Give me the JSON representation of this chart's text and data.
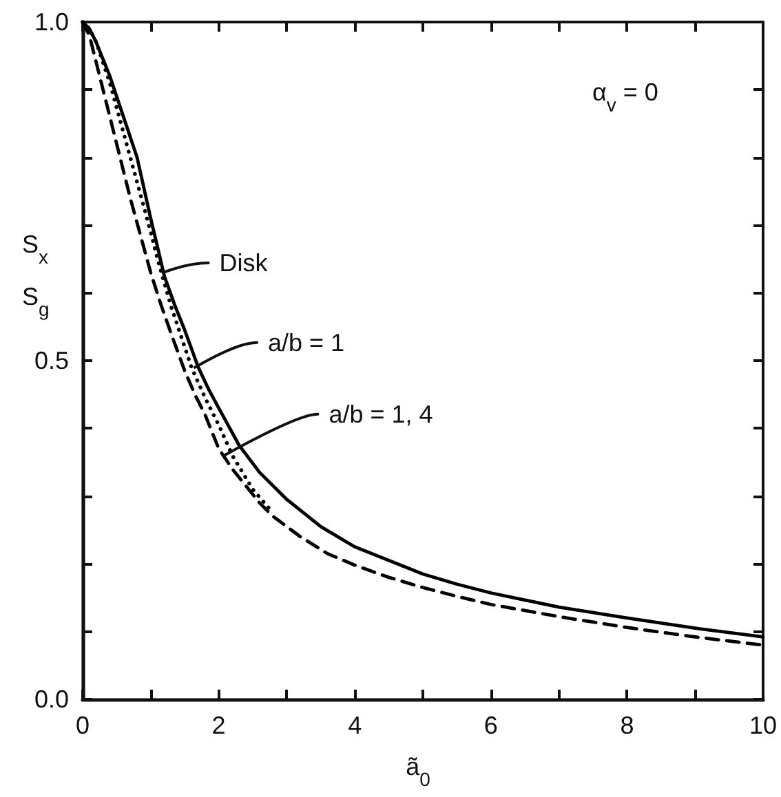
{
  "chart_data": {
    "type": "line",
    "xlabel": "ã$_{0}$",
    "ylabel": "S$_{x}$\nS$_{g}$",
    "xlim": [
      0,
      10
    ],
    "ylim": [
      0,
      1
    ],
    "xticks": [
      0,
      {
        "value": 1,
        "label": null
      },
      2,
      {
        "value": 3,
        "label": null
      },
      4,
      {
        "value": 5,
        "label": null
      },
      6,
      {
        "value": 7,
        "label": null
      },
      8,
      {
        "value": 9,
        "label": null
      },
      10
    ],
    "yticks": [
      {
        "value": 0,
        "label": "0.0"
      },
      {
        "value": 0.1,
        "label": null
      },
      {
        "value": 0.2,
        "label": null
      },
      {
        "value": 0.3,
        "label": null
      },
      {
        "value": 0.4,
        "label": null
      },
      {
        "value": 0.5,
        "label": "0.5"
      },
      {
        "value": 0.6,
        "label": null
      },
      {
        "value": 0.7,
        "label": null
      },
      {
        "value": 0.8,
        "label": null
      },
      {
        "value": 0.9,
        "label": null
      },
      {
        "value": 1,
        "label": "1.0"
      }
    ],
    "series": [
      {
        "color": "#000000",
        "line_style": "solid",
        "x": [
          0,
          0.1,
          0.2,
          0.3,
          0.4,
          0.5,
          0.6,
          0.7,
          0.8,
          0.9,
          1.0,
          1.1,
          1.2,
          1.35,
          1.5,
          1.7,
          1.85,
          2.0,
          2.3,
          2.6,
          3.0,
          3.5,
          4.0,
          4.5,
          5,
          5.5,
          6,
          7,
          8,
          9,
          10
        ],
        "values": [
          1.0,
          0.99,
          0.97,
          0.945,
          0.92,
          0.89,
          0.86,
          0.83,
          0.8,
          0.755,
          0.71,
          0.668,
          0.625,
          0.583,
          0.545,
          0.49,
          0.458,
          0.43,
          0.375,
          0.335,
          0.295,
          0.255,
          0.225,
          0.205,
          0.185,
          0.17,
          0.157,
          0.136,
          0.12,
          0.105,
          0.092
        ]
      },
      {
        "color": "#000000",
        "line_style": "dotted",
        "x": [
          0,
          0.1,
          0.2,
          0.3,
          0.4,
          0.55,
          0.7,
          0.85,
          1.0,
          1.1,
          1.3,
          1.45,
          1.6,
          1.8,
          2.0,
          2.2,
          2.5,
          2.8
        ],
        "values": [
          1.0,
          0.99,
          0.97,
          0.94,
          0.91,
          0.855,
          0.8,
          0.745,
          0.69,
          0.65,
          0.58,
          0.535,
          0.49,
          0.445,
          0.405,
          0.36,
          0.31,
          0.275
        ]
      },
      {
        "color": "#000000",
        "line_style": "dashed",
        "x": [
          0,
          0.1,
          0.2,
          0.3,
          0.4,
          0.5,
          0.6,
          0.7,
          0.85,
          1.0,
          1.15,
          1.3,
          1.5,
          1.65,
          1.8,
          2.0,
          2.2,
          2.4,
          2.6,
          2.8,
          3.2,
          3.6,
          4.0,
          4.5,
          5,
          5.5,
          6,
          7,
          8,
          9,
          10
        ],
        "values": [
          1.0,
          0.98,
          0.94,
          0.9,
          0.86,
          0.82,
          0.78,
          0.74,
          0.685,
          0.63,
          0.583,
          0.54,
          0.485,
          0.45,
          0.42,
          0.37,
          0.34,
          0.315,
          0.29,
          0.27,
          0.24,
          0.215,
          0.198,
          0.18,
          0.165,
          0.152,
          0.14,
          0.122,
          0.106,
          0.092,
          0.08
        ]
      }
    ],
    "annotations": [
      {
        "text": "Disk",
        "x": 1.18,
        "y": 0.63
      },
      {
        "text": "a/b = 1",
        "x": 1.65,
        "y": 0.49
      },
      {
        "text": "a/b = 1, 4",
        "x": 2.08,
        "y": 0.36
      },
      "α$_{v}$ = 0"
    ]
  }
}
